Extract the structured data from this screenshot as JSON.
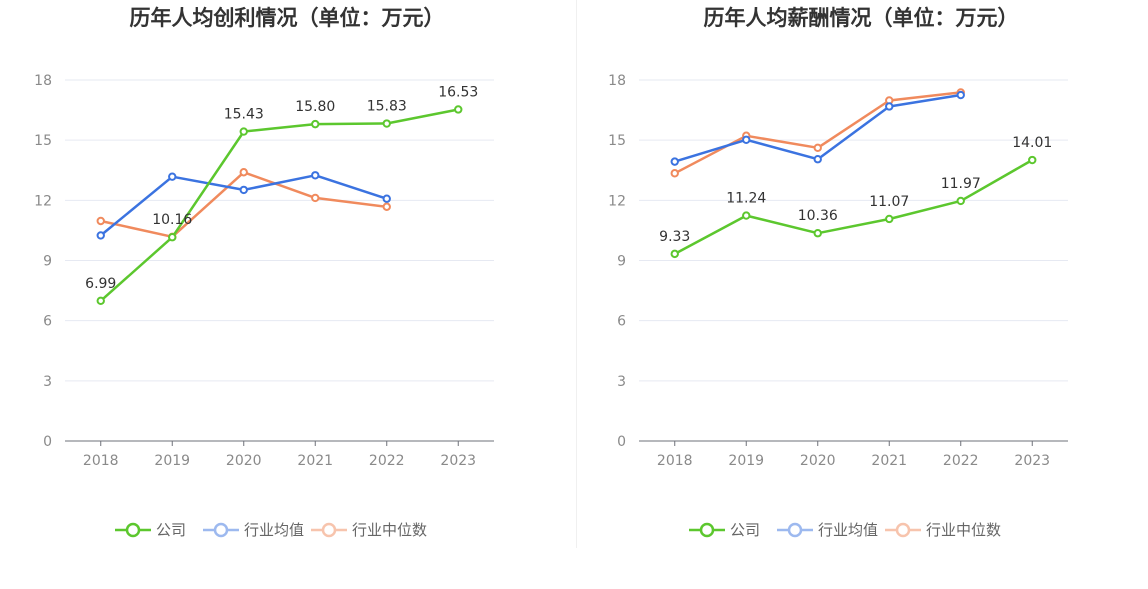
{
  "charts": [
    {
      "title": "历年人均创利情况（单位：万元）",
      "chart_data": {
        "type": "line",
        "title": "历年人均创利情况（单位：万元）",
        "categories": [
          "2018",
          "2019",
          "2020",
          "2021",
          "2022",
          "2023"
        ],
        "ylim": [
          0,
          18
        ],
        "yticks": [
          0,
          3,
          6,
          9,
          12,
          15,
          18
        ],
        "series": [
          {
            "name": "公司",
            "color": "#5cc72e",
            "values": [
              6.99,
              10.16,
              15.43,
              15.8,
              15.83,
              16.53
            ],
            "labels": [
              "6.99",
              "10.16",
              "15.43",
              "15.80",
              "15.83",
              "16.53"
            ]
          },
          {
            "name": "行业均值",
            "color": "#3b73e0",
            "values": [
              10.25,
              13.18,
              12.52,
              13.25,
              12.08,
              null
            ]
          },
          {
            "name": "行业中位数",
            "color": "#f08a5d",
            "values": [
              10.97,
              10.18,
              13.4,
              12.12,
              11.68,
              null
            ]
          }
        ]
      }
    },
    {
      "title": "历年人均薪酬情况（单位：万元）",
      "chart_data": {
        "type": "line",
        "title": "历年人均薪酬情况（单位：万元）",
        "categories": [
          "2018",
          "2019",
          "2020",
          "2021",
          "2022",
          "2023"
        ],
        "ylim": [
          0,
          18
        ],
        "yticks": [
          0,
          3,
          6,
          9,
          12,
          15,
          18
        ],
        "series": [
          {
            "name": "公司",
            "color": "#5cc72e",
            "values": [
              9.33,
              11.24,
              10.36,
              11.07,
              11.97,
              14.01
            ],
            "labels": [
              "9.33",
              "11.24",
              "10.36",
              "11.07",
              "11.97",
              "14.01"
            ]
          },
          {
            "name": "行业均值",
            "color": "#3b73e0",
            "values": [
              13.93,
              15.02,
              14.05,
              16.68,
              17.25,
              null
            ]
          },
          {
            "name": "行业中位数",
            "color": "#f08a5d",
            "values": [
              13.35,
              15.22,
              14.62,
              16.98,
              17.38,
              null
            ]
          }
        ]
      }
    }
  ],
  "legend": {
    "items": [
      {
        "name": "公司",
        "color": "#5cc72e",
        "light": "#5cc72e"
      },
      {
        "name": "行业均值",
        "color": "#3b73e0",
        "light": "#9db9ef"
      },
      {
        "name": "行业中位数",
        "color": "#f08a5d",
        "light": "#f7c4ad"
      }
    ]
  }
}
